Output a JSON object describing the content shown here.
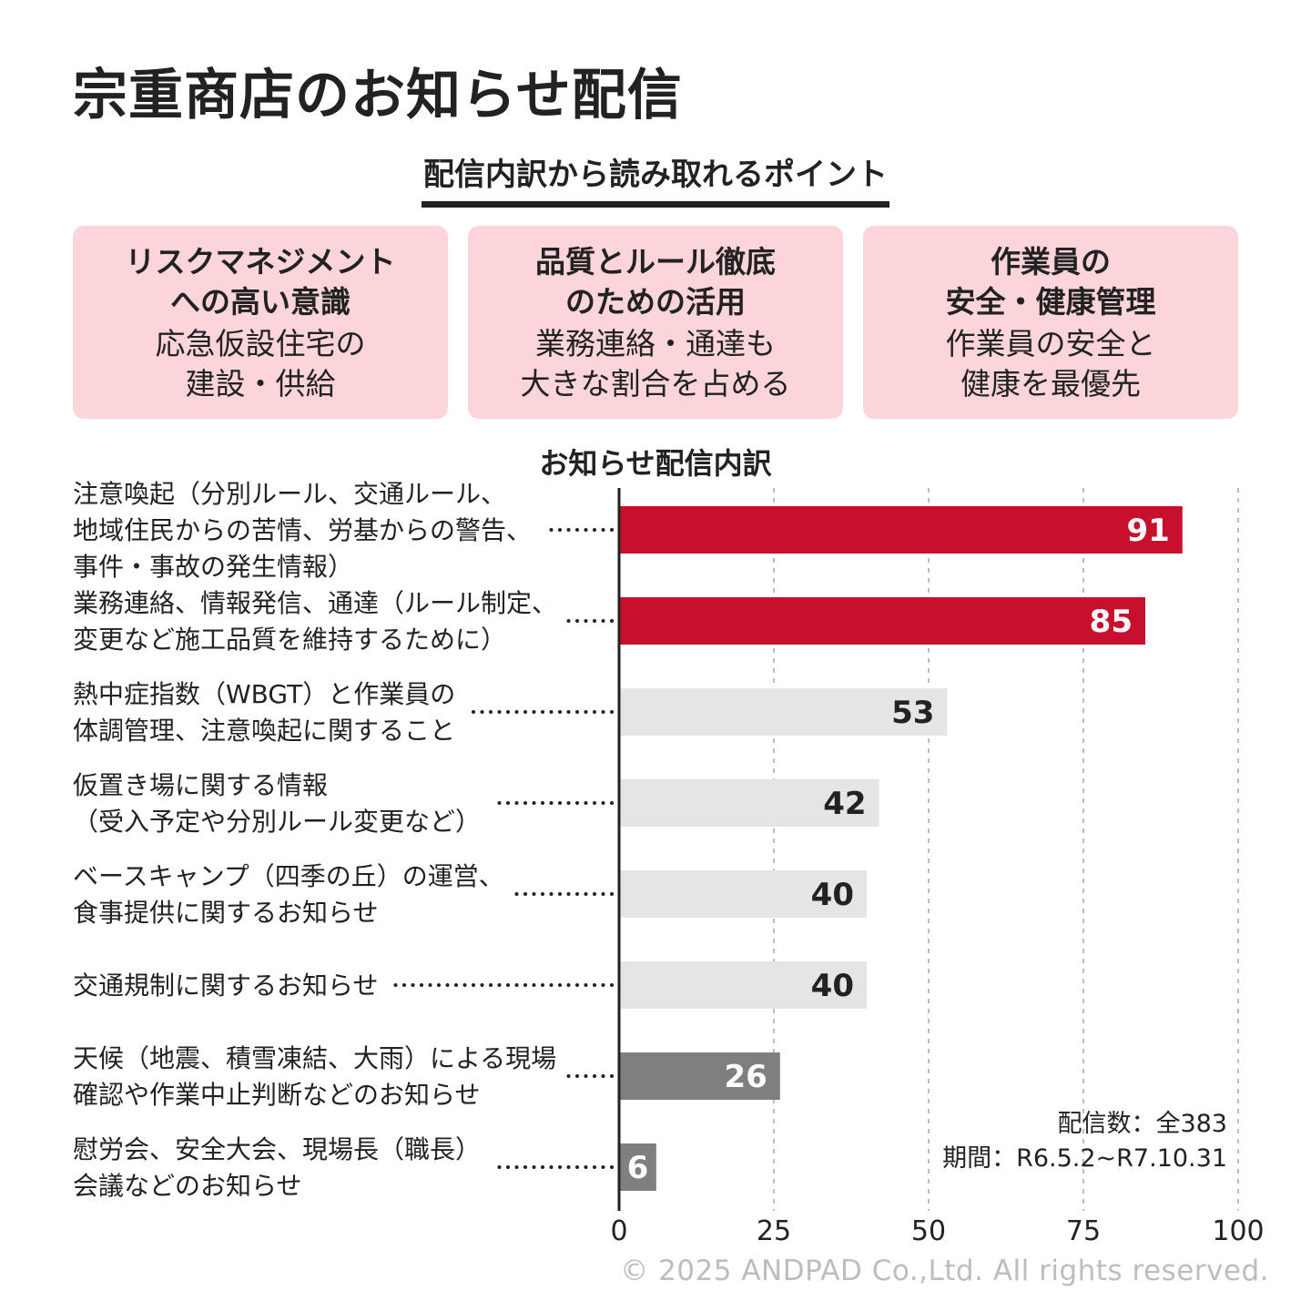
{
  "title": "宗重商店のお知らせ配信",
  "points_heading": "配信内訳から読み取れるポイント",
  "cards": [
    {
      "title": "リスクマネジメント\nへの高い意識",
      "body": "応急仮設住宅の\n建設・供給"
    },
    {
      "title": "品質とルール徹底\nのための活用",
      "body": "業務連絡・通達も\n大きな割合を占める"
    },
    {
      "title": "作業員の\n安全・健康管理",
      "body": "作業員の安全と\n健康を最優先"
    }
  ],
  "colors": {
    "card_bg": "#FCD5DB",
    "highlight": "#C8102E",
    "neutral": "#E5E5E5",
    "muted": "#7F7F7F",
    "text": "#222222",
    "copyright": "#BDBDBD"
  },
  "note": {
    "count": "配信数：全383",
    "period": "期間：R6.5.2~R7.10.31"
  },
  "copyright": "© 2025 ANDPAD Co.,Ltd. All rights reserved.",
  "chart_data": {
    "type": "bar",
    "orientation": "horizontal",
    "title": "お知らせ配信内訳",
    "xlabel": "",
    "ylabel": "",
    "xlim": [
      0,
      100
    ],
    "xticks": [
      0,
      25,
      50,
      75,
      100
    ],
    "grid": true,
    "categories": [
      [
        "注意喚起（分別ルール、交通ルール、",
        "地域住民からの苦情、労基からの警告、",
        "事件・事故の発生情報）"
      ],
      [
        "業務連絡、情報発信、通達（ルール制定、",
        "変更など施工品質を維持するために）"
      ],
      [
        "熱中症指数（WBGT）と作業員の",
        "体調管理、注意喚起に関すること"
      ],
      [
        "仮置き場に関する情報",
        "（受入予定や分別ルール変更など）"
      ],
      [
        "ベースキャンプ（四季の丘）の運営、",
        "食事提供に関するお知らせ"
      ],
      [
        "交通規制に関するお知らせ"
      ],
      [
        "天候（地震、積雪凍結、大雨）による現場",
        "確認や作業中止判断などのお知らせ"
      ],
      [
        "慰労会、安全大会、現場長（職長）",
        "会議などのお知らせ"
      ]
    ],
    "values": [
      91,
      85,
      53,
      42,
      40,
      40,
      26,
      6
    ],
    "bar_groups": [
      "highlight",
      "highlight",
      "neutral",
      "neutral",
      "neutral",
      "neutral",
      "muted",
      "muted"
    ]
  }
}
